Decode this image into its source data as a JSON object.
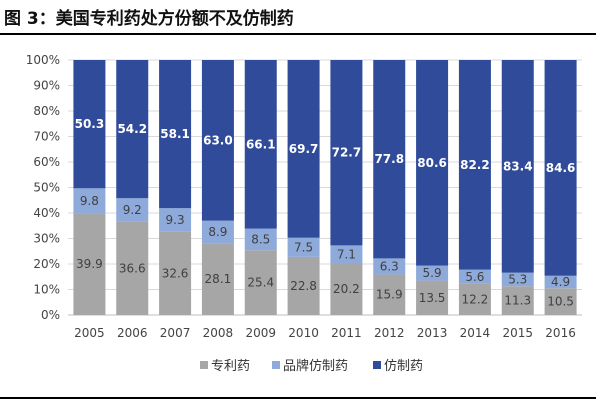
{
  "figure_title": "图  3：美国专利药处方份额不及仿制药",
  "colors": {
    "patent": "#a6a6a6",
    "brand_generic": "#8eaadb",
    "generic": "#2f4b99",
    "grid": "#d9d9d9",
    "axis": "#bfbfbf"
  },
  "chart_data": {
    "type": "bar",
    "stacked": true,
    "categories": [
      "2005",
      "2006",
      "2007",
      "2008",
      "2009",
      "2010",
      "2011",
      "2012",
      "2013",
      "2014",
      "2015",
      "2016"
    ],
    "series": [
      {
        "name": "专利药",
        "values": [
          39.9,
          36.6,
          32.6,
          28.1,
          25.4,
          22.8,
          20.2,
          15.9,
          13.5,
          12.2,
          11.3,
          10.5
        ]
      },
      {
        "name": "品牌仿制药",
        "values": [
          9.8,
          9.2,
          9.3,
          8.9,
          8.5,
          7.5,
          7.1,
          6.3,
          5.9,
          5.6,
          5.3,
          4.9
        ]
      },
      {
        "name": "仿制药",
        "values": [
          50.3,
          54.2,
          58.1,
          63.0,
          66.1,
          69.7,
          72.7,
          77.8,
          80.6,
          82.2,
          83.4,
          84.6
        ]
      }
    ],
    "value_labels": [
      [
        "39.9",
        "36.6",
        "32.6",
        "28.1",
        "25.4",
        "22.8",
        "20.2",
        "15.9",
        "13.5",
        "12.2",
        "11.3",
        "10.5"
      ],
      [
        "9.8",
        "9.2",
        "9.3",
        "8.9",
        "8.5",
        "7.5",
        "7.1",
        "6.3",
        "5.9",
        "5.6",
        "5.3",
        "4.9"
      ],
      [
        "50.3",
        "54.2",
        "58.1",
        "63.0",
        "66.1",
        "69.7",
        "72.7",
        "77.8",
        "80.6",
        "82.2",
        "83.4",
        "84.6"
      ]
    ],
    "y_ticks": [
      "0%",
      "10%",
      "20%",
      "30%",
      "40%",
      "50%",
      "60%",
      "70%",
      "80%",
      "90%",
      "100%"
    ],
    "ylim": [
      0,
      100
    ],
    "grid": true,
    "legend_position": "bottom"
  }
}
